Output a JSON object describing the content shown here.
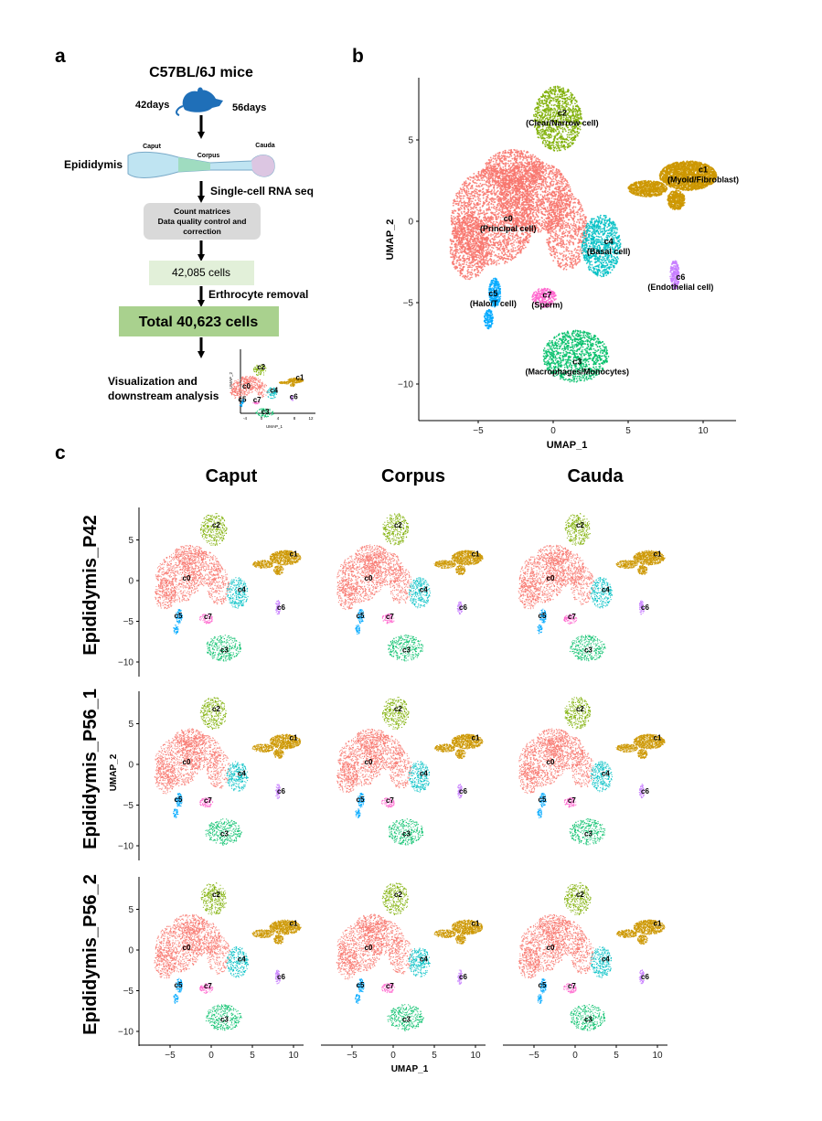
{
  "panel_labels": [
    "a",
    "b",
    "c"
  ],
  "flow": {
    "title": "C57BL/6J mice",
    "ages": [
      "42days",
      "56days"
    ],
    "tissue": "Epididymis",
    "regions": [
      "Caput",
      "Corpus",
      "Cauda"
    ],
    "step_seq": "Single-cell RNA seq",
    "qc_box": [
      "Count matrices",
      "Data quality control and",
      "correction"
    ],
    "cells_raw": "42,085  cells",
    "step_removal": "Erthrocyte removal",
    "cells_total": "Total 40,623  cells",
    "final": [
      "Visualization and",
      "downstream analysis"
    ],
    "inset": {
      "x_label": "UMAP_1",
      "y_label": "UMAP_2",
      "xticks": [
        "-4",
        "0",
        "4",
        "8",
        "12"
      ]
    }
  },
  "umap": {
    "x_label": "UMAP_1",
    "y_label": "UMAP_2",
    "xticks": [
      {
        "value": -5,
        "label": "−5"
      },
      0,
      5,
      10
    ],
    "yticks": [
      5,
      0,
      {
        "value": -5,
        "label": "−5"
      },
      {
        "value": -10,
        "label": "−10"
      }
    ],
    "clusters": [
      {
        "id": "c0",
        "name": "(Principal cell)",
        "color": "#F8766D"
      },
      {
        "id": "c1",
        "name": "(Myoid/Fibroblast)",
        "color": "#CD9600"
      },
      {
        "id": "c2",
        "name": "(Clear/Narrow cell)",
        "color": "#7CAE00"
      },
      {
        "id": "c3",
        "name": "(Macrophages/Monocytes)",
        "color": "#00BE67"
      },
      {
        "id": "c4",
        "name": "(Basal cell)",
        "color": "#00BFC4"
      },
      {
        "id": "c5",
        "name": "(Halo/T cell)",
        "color": "#00A9FF"
      },
      {
        "id": "c6",
        "name": "(Endothelial cell)",
        "color": "#C77CFF"
      },
      {
        "id": "c7",
        "name": "(Sperm)",
        "color": "#FF61CC"
      }
    ]
  },
  "grid": {
    "columns": [
      "Caput",
      "Corpus",
      "Cauda"
    ],
    "rows": [
      "Epididymis_P42",
      "Epididymis_P56_1",
      "Epididymis_P56_2"
    ]
  }
}
